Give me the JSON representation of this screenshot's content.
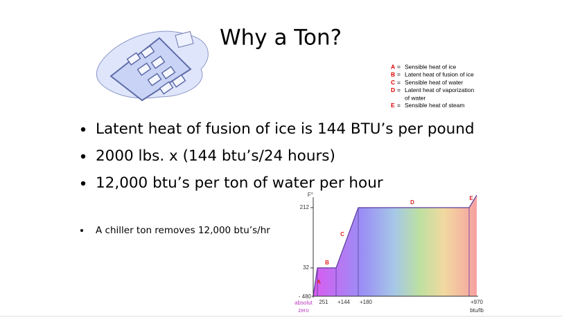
{
  "title": "Why a Ton?",
  "legend": [
    {
      "key": "A",
      "sep": "=",
      "text": "Sensible heat of ice"
    },
    {
      "key": "B",
      "sep": "=",
      "text": "Latent heat of fusion of ice"
    },
    {
      "key": "C",
      "sep": "=",
      "text": "Sensible heat of water"
    },
    {
      "key": "D",
      "sep": "=",
      "text": "Latent heat of vaporization"
    },
    {
      "key": "",
      "sep": "",
      "text": "of water"
    },
    {
      "key": "E",
      "sep": "=",
      "text": "Sensible heat of steam"
    }
  ],
  "bullets": [
    "Latent heat of fusion of ice is 144 BTU’s per pound",
    "2000 lbs. x (144 btu’s/24 hours)",
    "12,000 btu’s per ton of water per hour"
  ],
  "note": "A chiller ton removes 12,000 btu’s/hr",
  "figure": {
    "y_label": "F°",
    "y_ticks": [
      "212",
      "32",
      "- 480"
    ],
    "x_ticks": [
      "251",
      "+144",
      "+180",
      "+970"
    ],
    "x_unit": "btu/lb",
    "origin_label": [
      "absolut",
      "zero"
    ],
    "segments": [
      "A",
      "B",
      "C",
      "D",
      "E"
    ]
  }
}
